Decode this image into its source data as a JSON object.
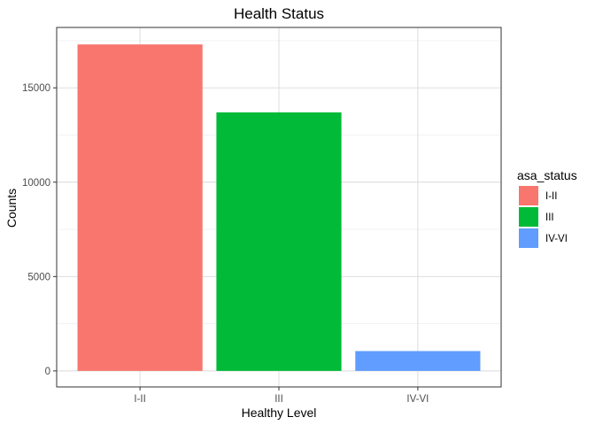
{
  "chart_data": {
    "type": "bar",
    "title": "Health Status",
    "xlabel": "Healthy Level",
    "ylabel": "Counts",
    "categories": [
      "I-II",
      "III",
      "IV-VI"
    ],
    "values": [
      17300,
      13700,
      1050
    ],
    "colors": [
      "#F8766D",
      "#00BA38",
      "#619CFF"
    ],
    "ylim": [
      -850,
      18200
    ],
    "yticks": [
      0,
      5000,
      10000,
      15000
    ],
    "grid": true,
    "legend": {
      "title": "asa_status",
      "position": "right",
      "entries": [
        "I-II",
        "III",
        "IV-VI"
      ]
    }
  }
}
